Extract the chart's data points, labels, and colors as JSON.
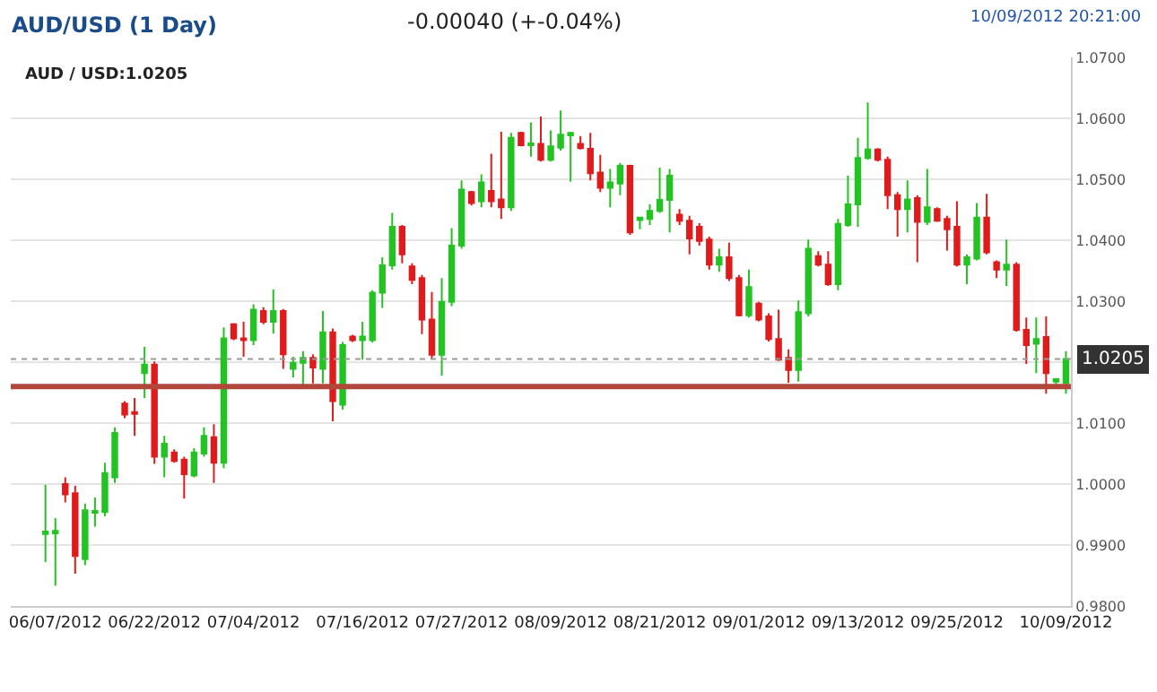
{
  "chart_data": {
    "type": "candlestick",
    "title": "AUD/USD (1 Day)",
    "annotations": [
      "-0.00040 (+-0.04%)",
      "10/09/2012 20:21:00",
      "AUD / USD:1.0205"
    ],
    "categories": [
      null,
      "06/07/2012",
      null,
      null,
      null,
      null,
      null,
      null,
      null,
      null,
      null,
      "06/22/2012",
      null,
      null,
      null,
      null,
      null,
      null,
      null,
      null,
      null,
      "07/04/2012",
      null,
      null,
      null,
      null,
      null,
      null,
      null,
      null,
      null,
      null,
      "07/16/2012",
      null,
      null,
      null,
      null,
      null,
      null,
      null,
      null,
      null,
      "07/27/2012",
      null,
      null,
      null,
      null,
      null,
      null,
      null,
      null,
      null,
      "08/09/2012",
      null,
      null,
      null,
      null,
      null,
      null,
      null,
      null,
      null,
      "08/21/2012",
      null,
      null,
      null,
      null,
      null,
      null,
      null,
      null,
      null,
      "09/01/2012",
      null,
      null,
      null,
      null,
      null,
      null,
      null,
      null,
      null,
      "09/13/2012",
      null,
      null,
      null,
      null,
      null,
      null,
      null,
      null,
      null,
      "09/25/2012",
      null,
      null,
      null,
      null,
      null,
      null,
      null,
      null,
      null,
      null,
      "10/09/2012"
    ],
    "ohlc": [
      [
        0.9918,
        0.9999,
        0.9872,
        0.9922
      ],
      [
        0.9919,
        0.9944,
        0.9833,
        0.9923
      ],
      [
        1.0,
        1.0011,
        0.997,
        0.9983
      ],
      [
        0.9985,
        0.9997,
        0.9853,
        0.9882
      ],
      [
        0.9877,
        0.9968,
        0.9867,
        0.9957
      ],
      [
        0.9953,
        0.9978,
        0.993,
        0.9956
      ],
      [
        0.9954,
        1.0035,
        0.9947,
        1.0018
      ],
      [
        1.0011,
        1.0093,
        1.0002,
        1.0084
      ],
      [
        1.0132,
        1.0136,
        1.0108,
        1.0114
      ],
      [
        1.0118,
        1.0141,
        1.0079,
        1.0115
      ],
      [
        1.0182,
        1.0225,
        1.0141,
        1.0196
      ],
      [
        1.0196,
        1.0201,
        1.0033,
        1.0045
      ],
      [
        1.0045,
        1.0079,
        1.0011,
        1.0066
      ],
      [
        1.0052,
        1.0057,
        1.0035,
        1.0038
      ],
      [
        1.004,
        1.0045,
        0.9976,
        1.0016
      ],
      [
        1.0014,
        1.0059,
        1.0011,
        1.0052
      ],
      [
        1.005,
        1.0093,
        1.0045,
        1.0079
      ],
      [
        1.0077,
        1.0098,
        1.0002,
        1.0035
      ],
      [
        1.0035,
        1.0257,
        1.0026,
        1.0239
      ],
      [
        1.0262,
        1.0264,
        1.0236,
        1.0239
      ],
      [
        1.0239,
        1.0266,
        1.0209,
        1.0236
      ],
      [
        1.0236,
        1.0295,
        1.0228,
        1.0286
      ],
      [
        1.0284,
        1.029,
        1.0262,
        1.0266
      ],
      [
        1.0266,
        1.0319,
        1.0247,
        1.0284
      ],
      [
        1.0284,
        1.0287,
        1.0189,
        1.0213
      ],
      [
        1.0189,
        1.0209,
        1.0175,
        1.0199
      ],
      [
        1.0199,
        1.0218,
        1.0156,
        1.0207
      ],
      [
        1.0207,
        1.0213,
        1.0165,
        1.0191
      ],
      [
        1.0189,
        1.0284,
        1.0165,
        1.0249
      ],
      [
        1.0249,
        1.0255,
        1.0103,
        1.0136
      ],
      [
        1.013,
        1.0233,
        1.0122,
        1.0228
      ],
      [
        1.0242,
        1.0245,
        1.0233,
        1.0236
      ],
      [
        1.0236,
        1.0266,
        1.0204,
        1.0242
      ],
      [
        1.0236,
        1.0318,
        1.0232,
        1.0314
      ],
      [
        1.0314,
        1.0372,
        1.0289,
        1.0359
      ],
      [
        1.0359,
        1.0445,
        1.0352,
        1.0422
      ],
      [
        1.0422,
        1.0425,
        1.0362,
        1.0377
      ],
      [
        1.0357,
        1.0362,
        1.0328,
        1.0335
      ],
      [
        1.0338,
        1.0343,
        1.0246,
        1.027
      ],
      [
        1.027,
        1.0315,
        1.0205,
        1.0212
      ],
      [
        1.0212,
        1.0338,
        1.0178,
        1.0299
      ],
      [
        1.0299,
        1.042,
        1.0292,
        1.0391
      ],
      [
        1.0391,
        1.0498,
        1.0386,
        1.0483
      ],
      [
        1.0479,
        1.0481,
        1.0457,
        1.0461
      ],
      [
        1.0464,
        1.0508,
        1.0454,
        1.0495
      ],
      [
        1.0481,
        1.0542,
        1.0454,
        1.0464
      ],
      [
        1.0467,
        1.0578,
        1.0435,
        1.0454
      ],
      [
        1.0454,
        1.0576,
        1.0448,
        1.0568
      ],
      [
        1.0576,
        1.0578,
        1.0554,
        1.0556
      ],
      [
        1.0556,
        1.0593,
        1.0537,
        1.0559
      ],
      [
        1.0558,
        1.0603,
        1.0529,
        1.0532
      ],
      [
        1.0532,
        1.058,
        1.0529,
        1.0554
      ],
      [
        1.0552,
        1.0613,
        1.0547,
        1.0573
      ],
      [
        1.0572,
        1.0578,
        1.0496,
        1.0576
      ],
      [
        1.0558,
        1.0571,
        1.0549,
        1.0551
      ],
      [
        1.055,
        1.0576,
        1.0498,
        1.051
      ],
      [
        1.0511,
        1.054,
        1.0479,
        1.0486
      ],
      [
        1.0486,
        1.0517,
        1.0454,
        1.0495
      ],
      [
        1.0493,
        1.0527,
        1.0474,
        1.0522
      ],
      [
        1.0522,
        1.0524,
        1.0409,
        1.0413
      ],
      [
        1.0433,
        1.0437,
        1.0418,
        1.0437
      ],
      [
        1.0435,
        1.0459,
        1.0425,
        1.0448
      ],
      [
        1.0448,
        1.0519,
        1.0445,
        1.0466
      ],
      [
        1.0466,
        1.0517,
        1.0413,
        1.0506
      ],
      [
        1.0442,
        1.0451,
        1.0425,
        1.0432
      ],
      [
        1.0432,
        1.044,
        1.0377,
        1.0403
      ],
      [
        1.0422,
        1.0428,
        1.0391,
        1.0399
      ],
      [
        1.0401,
        1.0406,
        1.0352,
        1.036
      ],
      [
        1.036,
        1.0386,
        1.0348,
        1.0372
      ],
      [
        1.0372,
        1.0396,
        1.0333,
        1.0338
      ],
      [
        1.0338,
        1.0343,
        1.0275,
        1.0277
      ],
      [
        1.0277,
        1.0352,
        1.0273,
        1.0323
      ],
      [
        1.0296,
        1.0299,
        1.0267,
        1.027
      ],
      [
        1.0275,
        1.028,
        1.0234,
        1.0238
      ],
      [
        1.0238,
        1.0286,
        1.0202,
        1.0204
      ],
      [
        1.0207,
        1.0221,
        1.0166,
        1.0187
      ],
      [
        1.0187,
        1.0301,
        1.0168,
        1.0282
      ],
      [
        1.028,
        1.0401,
        1.0275,
        1.0386
      ],
      [
        1.0374,
        1.0382,
        1.0357,
        1.036
      ],
      [
        1.036,
        1.0382,
        1.0325,
        1.0328
      ],
      [
        1.0328,
        1.0435,
        1.0318,
        1.0427
      ],
      [
        1.0425,
        1.0506,
        1.0422,
        1.0459
      ],
      [
        1.0459,
        1.0568,
        1.0422,
        1.0535
      ],
      [
        1.0535,
        1.0626,
        1.0532,
        1.0549
      ],
      [
        1.0549,
        1.0551,
        1.0529,
        1.0532
      ],
      [
        1.0532,
        1.0537,
        1.0451,
        1.0474
      ],
      [
        1.0474,
        1.0479,
        1.0406,
        1.0451
      ],
      [
        1.0451,
        1.0498,
        1.0413,
        1.0467
      ],
      [
        1.0469,
        1.0474,
        1.0364,
        1.043
      ],
      [
        1.043,
        1.0517,
        1.0425,
        1.0454
      ],
      [
        1.0451,
        1.0454,
        1.043,
        1.0432
      ],
      [
        1.0435,
        1.044,
        1.0383,
        1.0418
      ],
      [
        1.0422,
        1.0464,
        1.0357,
        1.036
      ],
      [
        1.036,
        1.0377,
        1.0328,
        1.0372
      ],
      [
        1.037,
        1.0461,
        1.0367,
        1.0437
      ],
      [
        1.0437,
        1.0476,
        1.0377,
        1.038
      ],
      [
        1.0364,
        1.0367,
        1.0338,
        1.0352
      ],
      [
        1.0352,
        1.0401,
        1.0325,
        1.036
      ],
      [
        1.036,
        1.0364,
        1.025,
        1.0253
      ],
      [
        1.0253,
        1.0273,
        1.0197,
        1.0228
      ],
      [
        1.023,
        1.0273,
        1.0182,
        1.0238
      ],
      [
        1.0241,
        1.0275,
        1.0148,
        1.0182
      ],
      [
        1.0168,
        1.0174,
        1.0163,
        1.0172
      ],
      [
        1.0166,
        1.0218,
        1.0148,
        1.0205
      ]
    ],
    "colors": [
      "#22c322",
      "#22c322",
      "#e01b1b",
      "#e01b1b",
      "#22c322",
      "#22c322",
      "#22c322",
      "#22c322",
      "#e01b1b",
      "#e01b1b",
      "#22c322",
      "#e01b1b",
      "#22c322",
      "#e01b1b",
      "#e01b1b",
      "#22c322",
      "#22c322",
      "#e01b1b",
      "#22c322",
      "#e01b1b",
      "#e01b1b",
      "#22c322",
      "#e01b1b",
      "#22c322",
      "#e01b1b",
      "#22c322",
      "#22c322",
      "#e01b1b",
      "#22c322",
      "#e01b1b",
      "#22c322",
      "#e01b1b",
      "#22c322",
      "#22c322",
      "#22c322",
      "#22c322",
      "#e01b1b",
      "#e01b1b",
      "#e01b1b",
      "#e01b1b",
      "#22c322",
      "#22c322",
      "#22c322",
      "#e01b1b",
      "#22c322",
      "#e01b1b",
      "#e01b1b",
      "#22c322",
      "#e01b1b",
      "#22c322",
      "#e01b1b",
      "#22c322",
      "#22c322",
      "#22c322",
      "#e01b1b",
      "#e01b1b",
      "#e01b1b",
      "#22c322",
      "#22c322",
      "#e01b1b",
      "#22c322",
      "#22c322",
      "#22c322",
      "#22c322",
      "#e01b1b",
      "#e01b1b",
      "#e01b1b",
      "#e01b1b",
      "#22c322",
      "#e01b1b",
      "#e01b1b",
      "#22c322",
      "#e01b1b",
      "#e01b1b",
      "#e01b1b",
      "#e01b1b",
      "#22c322",
      "#22c322",
      "#e01b1b",
      "#e01b1b",
      "#22c322",
      "#22c322",
      "#22c322",
      "#22c322",
      "#e01b1b",
      "#e01b1b",
      "#e01b1b",
      "#22c322",
      "#e01b1b",
      "#22c322",
      "#e01b1b",
      "#e01b1b",
      "#e01b1b",
      "#22c322",
      "#22c322",
      "#e01b1b",
      "#e01b1b",
      "#22c322",
      "#e01b1b",
      "#e01b1b",
      "#22c322",
      "#e01b1b",
      "#22c322",
      "#22c322"
    ],
    "ylim": [
      0.98,
      1.07
    ],
    "yticks": [
      {
        "value": 0.98,
        "label": "0.9800"
      },
      {
        "value": 0.99,
        "label": "0.9900"
      },
      {
        "value": 1.0,
        "label": "1.0000"
      },
      {
        "value": 1.01,
        "label": "1.0100"
      },
      {
        "value": 1.02,
        "label": null
      },
      {
        "value": 1.03,
        "label": "1.0300"
      },
      {
        "value": 1.04,
        "label": "1.0400"
      },
      {
        "value": 1.05,
        "label": "1.0500"
      },
      {
        "value": 1.06,
        "label": "1.0600"
      },
      {
        "value": 1.07,
        "label": "1.0700"
      }
    ],
    "ref_lines": [
      {
        "axis": "y",
        "value": 1.016,
        "color": "#b0473a",
        "line_style": "solid"
      },
      {
        "axis": "y",
        "value": 1.0205,
        "label": "1.0205",
        "color": "#999999",
        "line_style": "dotted"
      }
    ],
    "grid": "y"
  }
}
